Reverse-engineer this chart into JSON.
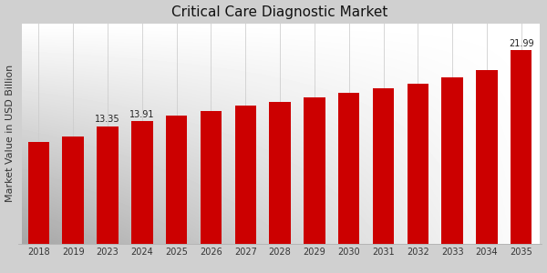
{
  "categories": [
    "2018",
    "2019",
    "2023",
    "2024",
    "2025",
    "2026",
    "2027",
    "2028",
    "2029",
    "2030",
    "2031",
    "2032",
    "2033",
    "2034",
    "2035"
  ],
  "values": [
    11.5,
    12.2,
    13.35,
    13.91,
    14.5,
    15.1,
    15.7,
    16.1,
    16.6,
    17.1,
    17.6,
    18.2,
    18.9,
    19.7,
    21.99
  ],
  "bar_color": "#cc0000",
  "label_values": {
    "2023": "13.35",
    "2024": "13.91",
    "2035": "21.99"
  },
  "title": "Critical Care Diagnostic Market",
  "ylabel": "Market Value in USD Billion",
  "bg_top_left": "#c8c8c8",
  "bg_bottom_right": "#f8f8f8",
  "title_fontsize": 11,
  "axis_label_fontsize": 8,
  "tick_fontsize": 7,
  "bar_label_fontsize": 7,
  "ylim": [
    0,
    25
  ],
  "bottom_stripe_color": "#cc0000",
  "grid_color": "#dddddd"
}
